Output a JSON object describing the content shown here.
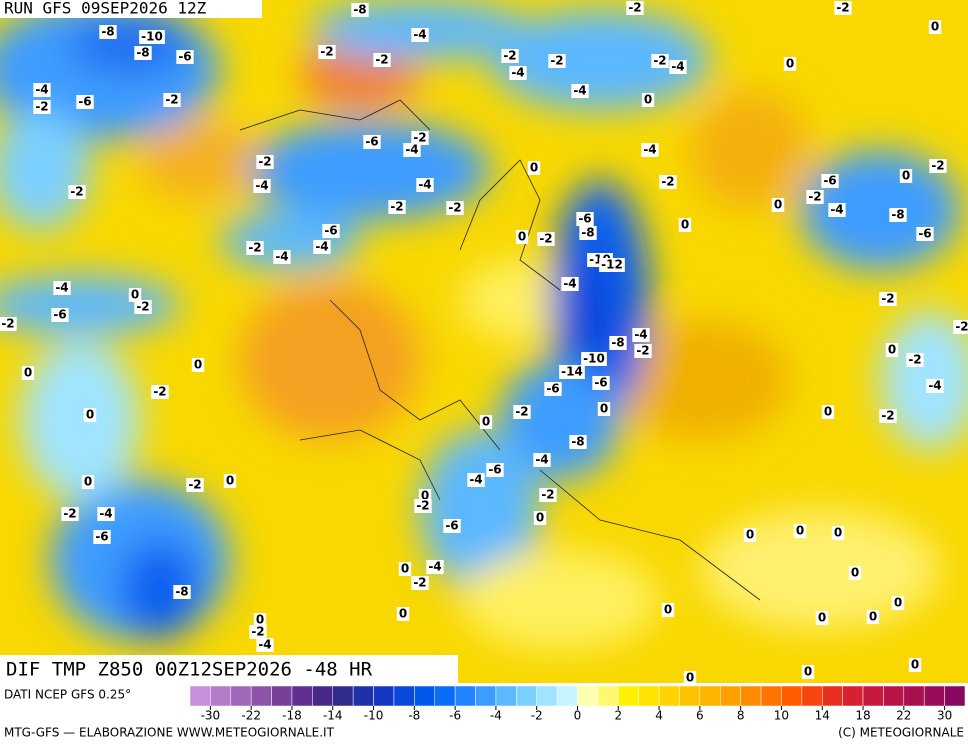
{
  "run_label": "RUN GFS 09SEP2026 12Z",
  "map_title": "DIF TMP Z850 00Z12SEP2026 -48 HR",
  "data_source": "DATI NCEP GFS 0.25°",
  "footer_left": "MTG-GFS — ELABORAZIONE WWW.METEOGIORNALE.IT",
  "footer_right": "(C) METEOGIORNALE",
  "colorbar": {
    "ticks": [
      -30,
      -22,
      -18,
      -14,
      -10,
      -8,
      -6,
      -4,
      -2,
      0,
      2,
      4,
      6,
      8,
      10,
      14,
      18,
      22,
      30
    ],
    "colors": [
      "#c890d8",
      "#b47cc8",
      "#a068b8",
      "#8c54a8",
      "#784098",
      "#603090",
      "#482888",
      "#302c8c",
      "#2030a8",
      "#1438c4",
      "#0a48dc",
      "#0058ec",
      "#0a6cf8",
      "#2084ff",
      "#3c9cff",
      "#5cb8ff",
      "#7cd0ff",
      "#a0e4ff",
      "#c8f4ff",
      "#ffffb0",
      "#fff870",
      "#fff000",
      "#ffe400",
      "#ffd400",
      "#ffc400",
      "#ffb400",
      "#ffa000",
      "#ff8c00",
      "#ff7400",
      "#ff5c00",
      "#f84410",
      "#e83020",
      "#d82030",
      "#c81840",
      "#b81448",
      "#a81050",
      "#980c58",
      "#880860"
    ]
  },
  "contour_labels": [
    -8,
    -2,
    -2,
    -8,
    -10,
    -4,
    -8,
    -6,
    -2,
    -2,
    -2,
    -2,
    -2,
    -4,
    -4,
    -4,
    -6,
    -2,
    -2,
    -4,
    0,
    0,
    0,
    -6,
    -2,
    -4,
    -2,
    -4,
    -4,
    -4,
    -2,
    -2,
    -2,
    -2,
    0,
    0,
    -6,
    -2,
    -4,
    -2,
    0,
    -8,
    -6,
    -6,
    -8,
    0,
    0,
    -2,
    -6,
    -2,
    -4,
    -4,
    -10,
    -12,
    -4,
    -4,
    0,
    -2,
    -6,
    -2,
    -2,
    -8,
    -4,
    -2,
    -10,
    -14,
    -6,
    -6,
    0,
    -2,
    -4,
    -2,
    0,
    0,
    -2,
    0,
    0,
    -2,
    0,
    0,
    -2,
    -8,
    -4,
    -6,
    -4,
    0,
    -2,
    0,
    0,
    -2,
    -2,
    0,
    -2,
    -4,
    -6,
    -6,
    0,
    0,
    0,
    -4,
    0,
    -2,
    0,
    -8,
    0,
    0,
    0,
    0,
    0,
    -2,
    0,
    -4,
    0,
    0,
    0
  ]
}
